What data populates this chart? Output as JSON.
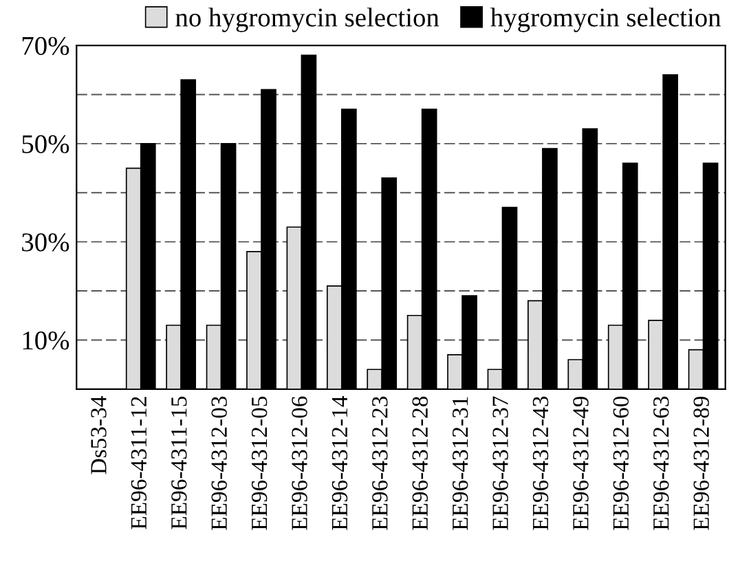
{
  "chart_data": {
    "type": "bar",
    "categories": [
      "Ds53-34",
      "EE96-4311-12",
      "EE96-4311-15",
      "EE96-4312-03",
      "EE96-4312-05",
      "EE96-4312-06",
      "EE96-4312-14",
      "EE96-4312-23",
      "EE96-4312-28",
      "EE96-4312-31",
      "EE96-4312-37",
      "EE96-4312-43",
      "EE96-4312-49",
      "EE96-4312-60",
      "EE96-4312-63",
      "EE96-4312-89"
    ],
    "series": [
      {
        "name": "no hygromycin selection",
        "color": "#dcdcdc",
        "values": [
          null,
          45,
          13,
          13,
          28,
          33,
          21,
          4,
          15,
          7,
          4,
          18,
          6,
          13,
          14,
          8
        ]
      },
      {
        "name": "hygromycin selection",
        "color": "#000000",
        "values": [
          null,
          50,
          63,
          50,
          61,
          68,
          57,
          43,
          57,
          19,
          37,
          49,
          53,
          46,
          64,
          46
        ]
      }
    ],
    "ylim": [
      0,
      70
    ],
    "yticks": [
      {
        "value": 10,
        "label": "10%"
      },
      {
        "value": 20,
        "label": null
      },
      {
        "value": 30,
        "label": "30%"
      },
      {
        "value": 40,
        "label": null
      },
      {
        "value": 50,
        "label": "50%"
      },
      {
        "value": 60,
        "label": null
      },
      {
        "value": 70,
        "label": "70%"
      }
    ],
    "grid": "y",
    "legend": "top"
  }
}
